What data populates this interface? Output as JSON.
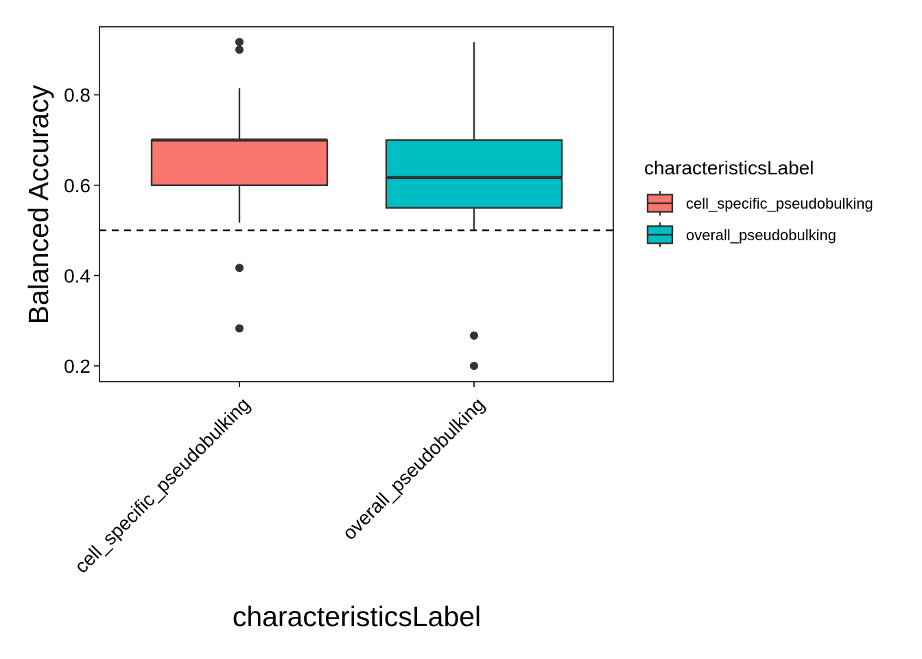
{
  "chart_data": {
    "type": "boxplot",
    "xlabel": "characteristicsLabel",
    "ylabel": "Balanced Accuracy",
    "ylim": [
      0.165,
      0.95
    ],
    "yticks": [
      0.2,
      0.4,
      0.6,
      0.8
    ],
    "ytick_labels": [
      "0.2",
      "0.4",
      "0.6",
      "0.8"
    ],
    "reference_line": {
      "y": 0.5,
      "style": "dashed"
    },
    "legend": {
      "title": "characteristicsLabel",
      "placement": "right"
    },
    "series": [
      {
        "name": "cell_specific_pseudobulking",
        "color": "#F8766D",
        "lower_whisker": 0.517,
        "q1": 0.6,
        "median": 0.7,
        "q3": 0.7,
        "upper_whisker": 0.815,
        "outliers": [
          0.917,
          0.9,
          0.417,
          0.283
        ]
      },
      {
        "name": "overall_pseudobulking",
        "color": "#00BFC4",
        "lower_whisker": 0.5,
        "q1": 0.55,
        "median": 0.617,
        "q3": 0.7,
        "upper_whisker": 0.917,
        "outliers": [
          0.267,
          0.2
        ]
      }
    ]
  }
}
